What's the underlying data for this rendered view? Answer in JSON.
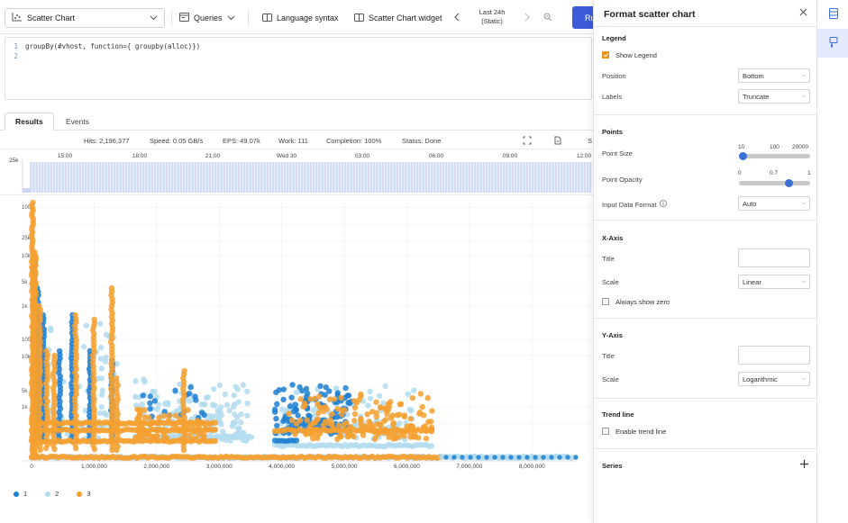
{
  "toolbar": {
    "viz_label": "Scatter Chart",
    "queries_label": "Queries",
    "language_syntax_label": "Language syntax",
    "widget_label": "Scatter Chart widget",
    "time_range_line1": "Last 24h",
    "time_range_line2": "(Static)",
    "run_label": "Ru"
  },
  "editor": {
    "lines": [
      {
        "num": "1",
        "text": "groupBy(#vhost, function={ groupby(alloc)})"
      },
      {
        "num": "2",
        "text": ""
      }
    ]
  },
  "tabs": [
    {
      "label": "Results",
      "active": true
    },
    {
      "label": "Events",
      "active": false
    }
  ],
  "stats": {
    "hits": "Hits: 2,196,377",
    "speed": "Speed: 0.05 GB/s",
    "eps": "EPS: 49.07k",
    "work": "Work: 111",
    "completion": "Completion: 100%",
    "status": "Status: Done",
    "extra": "S"
  },
  "histogram": {
    "y_label": "25k",
    "time_ticks": [
      "15:00",
      "18:00",
      "21:00",
      "Wed 30",
      "03:00",
      "06:00",
      "09:00",
      "12:00"
    ]
  },
  "chart_data": {
    "type": "scatter",
    "title": "",
    "xlabel": "",
    "ylabel": "",
    "x_scale": "linear",
    "y_scale": "log",
    "x_ticks": [
      "0",
      "1,000,000",
      "2,000,000",
      "3,000,000",
      "4,000,000",
      "5,000,000",
      "6,000,000",
      "7,000,000",
      "8,000,000"
    ],
    "y_ticks": [
      "100k",
      "25k",
      "10k",
      "5k",
      "1k",
      "100",
      "10k",
      "5k",
      "1k"
    ],
    "xlim": [
      0,
      8500000
    ],
    "legend_position": "bottom-left",
    "series": [
      {
        "name": "1",
        "color": "#1f7fd1"
      },
      {
        "name": "2",
        "color": "#b3dcf0"
      },
      {
        "name": "3",
        "color": "#f4a030"
      }
    ]
  },
  "panel": {
    "title": "Format scatter chart",
    "legend_section": "Legend",
    "show_legend_label": "Show Legend",
    "show_legend_checked": true,
    "position_label": "Position",
    "position_value": "Bottom",
    "labels_label": "Labels",
    "labels_value": "Truncate",
    "points_section": "Points",
    "point_size_label": "Point Size",
    "point_size_ticks": [
      "10",
      "100",
      "20000"
    ],
    "point_size_value": 0,
    "point_opacity_label": "Point Opacity",
    "point_opacity_ticks": [
      "0",
      "0.7",
      "1"
    ],
    "point_opacity_value": 0.7,
    "input_format_label": "Input Data Format",
    "input_format_value": "Auto",
    "xaxis_section": "X-Axis",
    "x_title_label": "Title",
    "x_scale_label": "Scale",
    "x_scale_value": "Linear",
    "always_zero_label": "Always show zero",
    "yaxis_section": "Y-Axis",
    "y_title_label": "Title",
    "y_scale_label": "Scale",
    "y_scale_value": "Logarithmic",
    "trend_section": "Trend line",
    "enable_trend_label": "Enable trend line",
    "series_section": "Series"
  }
}
